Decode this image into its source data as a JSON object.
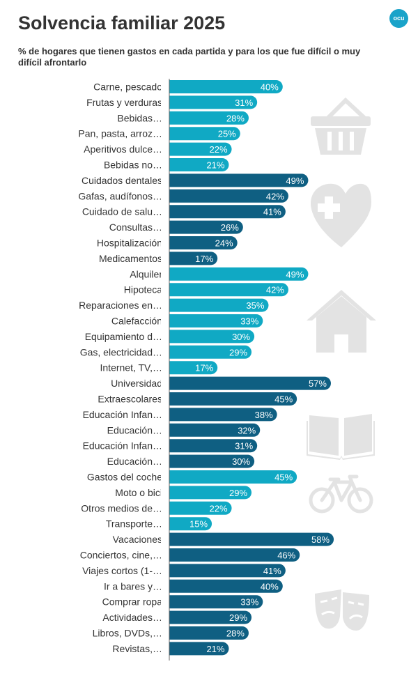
{
  "header": {
    "title": "Solvencia familiar 2025",
    "subtitle": "% de hogares que tienen gastos en cada partida y para los que fue difícil o muy difícil afrontarlo",
    "logo_text": "ocu"
  },
  "colors": {
    "light": "#10a9c4",
    "dark": "#0f5f82",
    "icon": "#e3e3e3",
    "axis": "#666666"
  },
  "chart_data": {
    "type": "bar",
    "orientation": "horizontal",
    "title": "Solvencia familiar 2025",
    "xlabel": "",
    "ylabel": "",
    "xlim": [
      0,
      100
    ],
    "value_suffix": "%",
    "categories": [
      "Carne, pescado",
      "Frutas y verduras",
      "Bebidas…",
      "Pan, pasta, arroz…",
      "Aperitivos dulce…",
      "Bebidas no…",
      "Cuidados dentales",
      "Gafas, audífonos…",
      "Cuidado de salu…",
      "Consultas…",
      "Hospitalización",
      "Medicamentos",
      "Alquiler",
      "Hipoteca",
      "Reparaciones en…",
      "Calefacción",
      "Equipamiento d…",
      "Gas, electricidad…",
      "Internet, TV,…",
      "Universidad",
      "Extraescolares",
      "Educación Infan…",
      "Educación…",
      "Educación Infan…",
      "Educación…",
      "Gastos del coche",
      "Moto o bici",
      "Otros medios de…",
      "Transporte…",
      "Vacaciones",
      "Conciertos, cine,…",
      "Viajes cortos (1-…",
      "Ir a bares y…",
      "Comprar ropa",
      "Actividades…",
      "Libros, DVDs,…",
      "Revistas,…"
    ],
    "values": [
      40,
      31,
      28,
      25,
      22,
      21,
      49,
      42,
      41,
      26,
      24,
      17,
      49,
      42,
      35,
      33,
      30,
      29,
      17,
      57,
      45,
      38,
      32,
      31,
      30,
      45,
      29,
      22,
      15,
      58,
      46,
      41,
      40,
      33,
      29,
      28,
      21
    ],
    "groups": [
      {
        "name": "Alimentación",
        "icon": "basket-icon",
        "start": 0,
        "end": 5,
        "color": "light"
      },
      {
        "name": "Salud",
        "icon": "health-heart-icon",
        "start": 6,
        "end": 11,
        "color": "dark"
      },
      {
        "name": "Vivienda",
        "icon": "house-icon",
        "start": 12,
        "end": 18,
        "color": "light"
      },
      {
        "name": "Educación",
        "icon": "book-icon",
        "start": 19,
        "end": 24,
        "color": "dark"
      },
      {
        "name": "Transporte",
        "icon": "bicycle-icon",
        "start": 25,
        "end": 28,
        "color": "light"
      },
      {
        "name": "Ocio",
        "icon": "theater-masks-icon",
        "start": 29,
        "end": 36,
        "color": "dark"
      }
    ]
  }
}
